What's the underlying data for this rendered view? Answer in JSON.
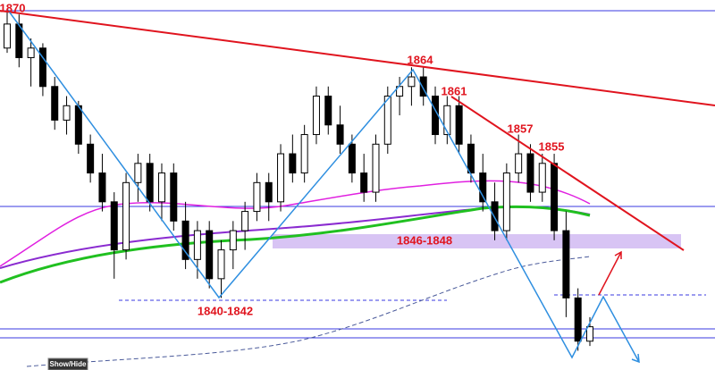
{
  "chart_data": {
    "type": "candlestick",
    "ylim": [
      1832.5,
      1871
    ],
    "series": [
      {
        "open": [
          1866,
          1868.5,
          1865,
          1866,
          1862,
          1858.5,
          1860,
          1856,
          1853,
          1850,
          1845,
          1852,
          1854,
          1850,
          1853,
          1848,
          1844,
          1847,
          1842,
          1845,
          1847,
          1849,
          1852,
          1850,
          1855,
          1853,
          1857,
          1861,
          1858,
          1856,
          1853,
          1851,
          1856,
          1861,
          1862,
          1863,
          1861,
          1857,
          1860,
          1856,
          1853,
          1850,
          1847,
          1853,
          1855,
          1851,
          1854,
          1847,
          1840,
          1835.5
        ],
        "high": [
          1870,
          1869.5,
          1867,
          1866.5,
          1863,
          1861,
          1860.5,
          1857,
          1855,
          1851,
          1853,
          1855,
          1855,
          1854,
          1854,
          1850,
          1848,
          1848,
          1846,
          1848,
          1850,
          1853,
          1853,
          1856,
          1857,
          1858,
          1862,
          1862,
          1860,
          1857,
          1855,
          1857,
          1862,
          1863,
          1864,
          1864,
          1862,
          1861,
          1861,
          1857,
          1855,
          1852,
          1854,
          1857,
          1856,
          1855,
          1855,
          1849,
          1841,
          1838
        ],
        "low": [
          1865.5,
          1864,
          1862,
          1861,
          1857.5,
          1857,
          1855,
          1852,
          1849,
          1842,
          1844,
          1850,
          1849,
          1848,
          1847,
          1843,
          1842,
          1841,
          1840,
          1843,
          1845,
          1848,
          1848,
          1849,
          1852,
          1852,
          1856,
          1857,
          1855,
          1852,
          1850,
          1850,
          1855,
          1859,
          1860,
          1860,
          1856,
          1856,
          1855,
          1852,
          1849,
          1846,
          1846,
          1852,
          1850,
          1850,
          1846,
          1838,
          1834.5,
          1835
        ],
        "close": [
          1868.5,
          1865,
          1866,
          1862,
          1858.5,
          1860,
          1856,
          1853,
          1850,
          1845,
          1852,
          1854,
          1850,
          1853,
          1848,
          1844,
          1847,
          1842,
          1845,
          1847,
          1849,
          1852,
          1850,
          1855,
          1853,
          1857,
          1861,
          1858,
          1856,
          1853,
          1851,
          1856,
          1861,
          1862,
          1863,
          1861,
          1857,
          1860,
          1856,
          1853,
          1850,
          1847,
          1853,
          1855,
          1851,
          1854,
          1847,
          1840,
          1835.5,
          1837
        ]
      }
    ],
    "annotations": [
      "1870",
      "1864",
      "1861",
      "1857",
      "1855",
      "1846-1848",
      "1840-1842"
    ],
    "button": "Show/Hide"
  }
}
